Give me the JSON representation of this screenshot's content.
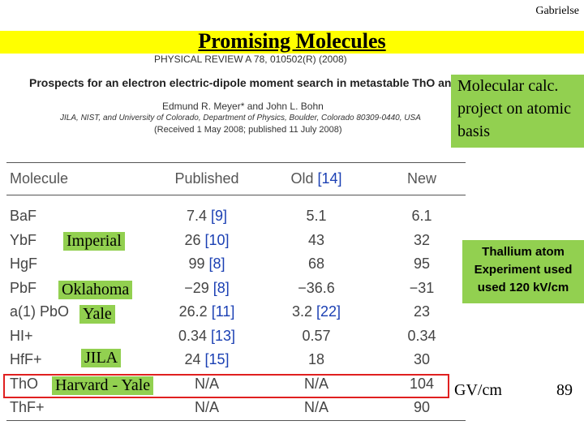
{
  "slide": {
    "author": "Gabrielse",
    "title": "Promising Molecules",
    "page_number": "89",
    "gv_label": "GV/cm",
    "calc_note": "Molecular calc. project on atomic basis",
    "thallium_note": "Thallium atom Experiment used used 120 kV/cm"
  },
  "paper": {
    "journal": "PHYSICAL REVIEW A 78, 010502(R) (2008)",
    "title": "Prospects for an electron electric-dipole moment search in metastable ThO and ThF+",
    "authors": "Edmund R. Meyer* and John L. Bohn",
    "affiliation": "JILA, NIST, and University of Colorado, Department of Physics, Boulder, Colorado 80309-0440, USA",
    "received": "(Received 1 May 2008; published 11 July 2008)"
  },
  "table": {
    "headers": [
      "Molecule",
      "Published",
      "Old",
      "[14]",
      "New"
    ],
    "rows": [
      {
        "molecule": "BaF",
        "published": "7.4",
        "pub_ref": "[9]",
        "old": "5.1",
        "old_ref": "",
        "new": "6.1"
      },
      {
        "molecule": "YbF",
        "published": "26",
        "pub_ref": "[10]",
        "old": "43",
        "old_ref": "",
        "new": "32"
      },
      {
        "molecule": "HgF",
        "published": "99",
        "pub_ref": "[8]",
        "old": "68",
        "old_ref": "",
        "new": "95"
      },
      {
        "molecule": "PbF",
        "published": "−29",
        "pub_ref": "[8]",
        "old": "−36.6",
        "old_ref": "",
        "new": "−31"
      },
      {
        "molecule": "a(1) PbO",
        "published": "26.2",
        "pub_ref": "[11]",
        "old": "3.2",
        "old_ref": "[22]",
        "new": "23"
      },
      {
        "molecule": "HI+",
        "published": "0.34",
        "pub_ref": "[13]",
        "old": "0.57",
        "old_ref": "",
        "new": "0.34"
      },
      {
        "molecule": "HfF+",
        "published": "24",
        "pub_ref": "[15]",
        "old": "18",
        "old_ref": "",
        "new": "30"
      },
      {
        "molecule": "ThO",
        "published": "N/A",
        "pub_ref": "",
        "old": "N/A",
        "old_ref": "",
        "new": "104"
      },
      {
        "molecule": "ThF+",
        "published": "N/A",
        "pub_ref": "",
        "old": "N/A",
        "old_ref": "",
        "new": "90"
      }
    ]
  },
  "labels": {
    "imperial": "Imperial",
    "oklahoma": "Oklahoma",
    "yale": "Yale",
    "jila": "JILA",
    "harvard_yale": "Harvard - Yale"
  },
  "colors": {
    "title_bar": "#ffff00",
    "label_green": "#92d050",
    "highlight_red": "#e02020",
    "ref_blue": "#1a3fb3"
  }
}
